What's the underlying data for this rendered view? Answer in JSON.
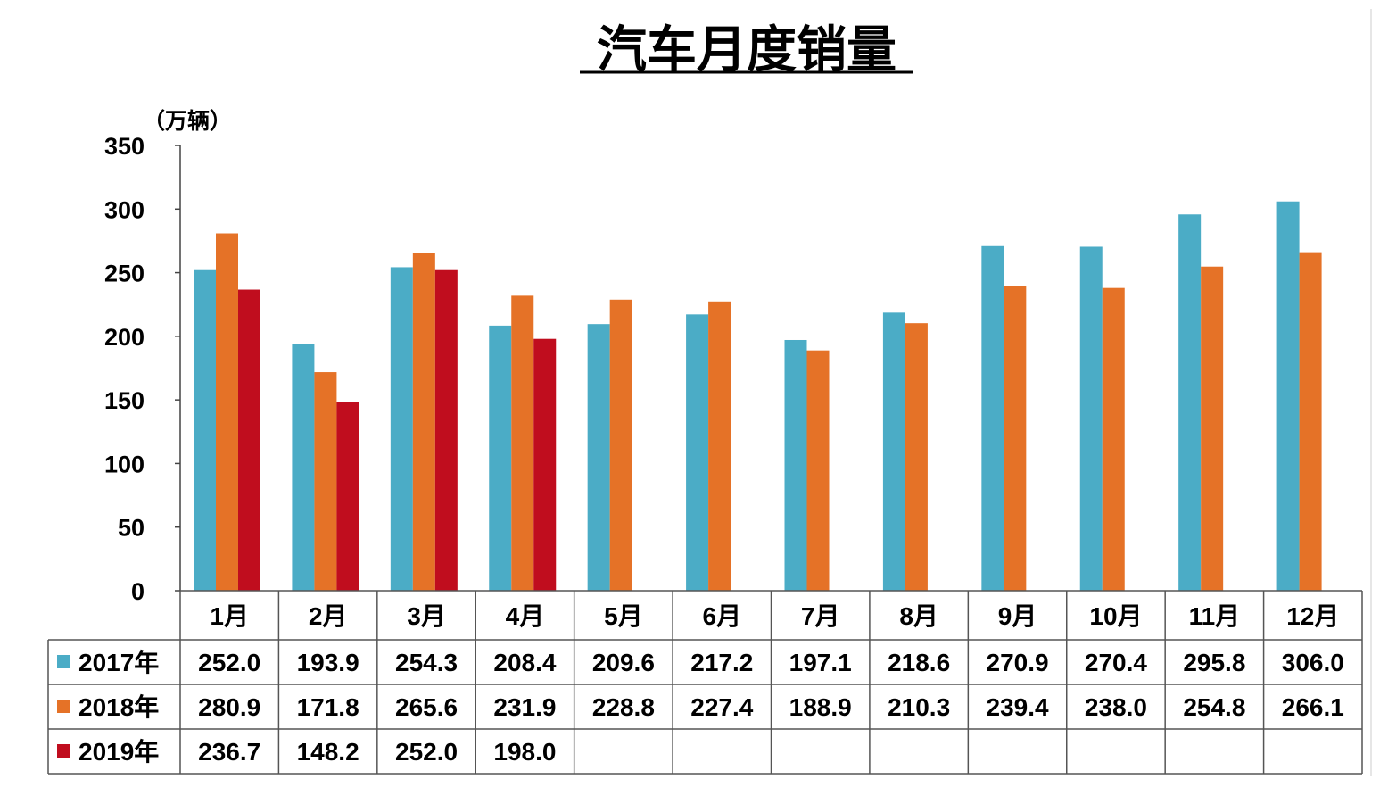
{
  "chart_data": {
    "type": "bar",
    "title": "汽车月度销量",
    "unit_label": "（万辆）",
    "categories": [
      "1月",
      "2月",
      "3月",
      "4月",
      "5月",
      "6月",
      "7月",
      "8月",
      "9月",
      "10月",
      "11月",
      "12月"
    ],
    "ylim": [
      0,
      350
    ],
    "yticks": [
      "0",
      "50",
      "100",
      "150",
      "200",
      "250",
      "300",
      "350"
    ],
    "grid": false,
    "legend": "data-table-rows",
    "series": [
      {
        "name": "2017年",
        "color": "#4bacc6",
        "values": [
          252.0,
          193.9,
          254.3,
          208.4,
          209.6,
          217.2,
          197.1,
          218.6,
          270.9,
          270.4,
          295.8,
          306.0
        ],
        "labels": [
          "252.0",
          "193.9",
          "254.3",
          "208.4",
          "209.6",
          "217.2",
          "197.1",
          "218.6",
          "270.9",
          "270.4",
          "295.8",
          "306.0"
        ]
      },
      {
        "name": "2018年",
        "color": "#e57227",
        "values": [
          280.9,
          171.8,
          265.6,
          231.9,
          228.8,
          227.4,
          188.9,
          210.3,
          239.4,
          238.0,
          254.8,
          266.1
        ],
        "labels": [
          "280.9",
          "171.8",
          "265.6",
          "231.9",
          "228.8",
          "227.4",
          "188.9",
          "210.3",
          "239.4",
          "238.0",
          "254.8",
          "266.1"
        ]
      },
      {
        "name": "2019年",
        "color": "#c00d1e",
        "values": [
          236.7,
          148.2,
          252.0,
          198.0,
          null,
          null,
          null,
          null,
          null,
          null,
          null,
          null
        ],
        "labels": [
          "236.7",
          "148.2",
          "252.0",
          "198.0",
          "",
          "",
          "",
          "",
          "",
          "",
          "",
          ""
        ]
      }
    ]
  }
}
